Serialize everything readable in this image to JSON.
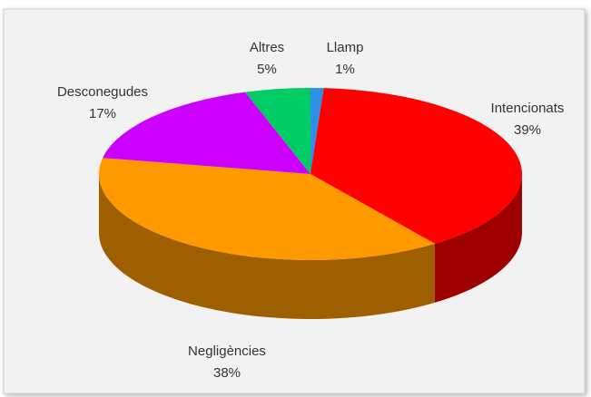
{
  "chart_data": {
    "type": "pie3d",
    "categories": [
      "Llamp",
      "Intencionats",
      "Negligències",
      "Desconegudes",
      "Altres"
    ],
    "values": [
      1,
      39,
      38,
      17,
      5
    ],
    "value_labels": [
      "1%",
      "39%",
      "38%",
      "17%",
      "5%"
    ],
    "colors": [
      "#2f8fe6",
      "#ff0000",
      "#ff9900",
      "#cc00ff",
      "#00cc66"
    ]
  }
}
